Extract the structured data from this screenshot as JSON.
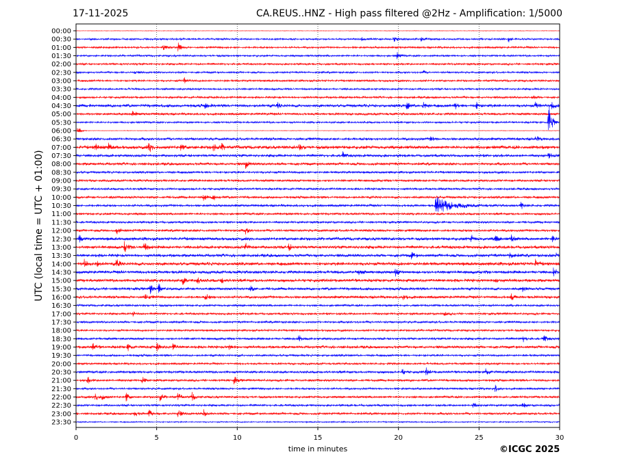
{
  "header": {
    "date": "17-11-2025",
    "title": "CA.REUS..HNZ - High pass filtered @2Hz - Amplification: 1/5000"
  },
  "footer": {
    "copyright": "©ICGC 2025"
  },
  "chart_data": {
    "type": "line",
    "subtype": "helicorder",
    "title": "CA.REUS..HNZ - High pass filtered @2Hz - Amplification: 1/5000",
    "xlabel": "time in minutes",
    "ylabel": "UTC (local time = UTC + 01:00)",
    "xlim": [
      0,
      30
    ],
    "xticks": [
      0,
      5,
      10,
      15,
      20,
      25,
      30
    ],
    "grid": "vertical dotted at 5-minute intervals",
    "colors": [
      "#ff0000",
      "#0000ff"
    ],
    "rows": [
      "00:00",
      "00:30",
      "01:00",
      "01:30",
      "02:00",
      "02:30",
      "03:00",
      "03:30",
      "04:00",
      "04:30",
      "05:00",
      "05:30",
      "06:00",
      "06:30",
      "07:00",
      "07:30",
      "08:00",
      "08:30",
      "09:00",
      "09:30",
      "10:00",
      "10:30",
      "11:00",
      "11:30",
      "12:00",
      "12:30",
      "13:00",
      "13:30",
      "14:00",
      "14:30",
      "15:00",
      "15:30",
      "16:00",
      "16:30",
      "17:00",
      "17:30",
      "18:00",
      "18:30",
      "19:00",
      "19:30",
      "20:00",
      "20:30",
      "21:00",
      "21:30",
      "22:00",
      "22:30",
      "23:00",
      "23:30"
    ],
    "noise_level": [
      0.3,
      1.2,
      1.3,
      1.2,
      1.3,
      1.2,
      1.3,
      1.2,
      1.4,
      2.0,
      1.6,
      1.2,
      0.3,
      1.8,
      2.2,
      1.8,
      1.8,
      1.5,
      1.5,
      1.4,
      1.6,
      1.6,
      1.5,
      1.4,
      1.6,
      2.0,
      2.0,
      2.0,
      2.2,
      2.0,
      2.0,
      1.8,
      1.8,
      1.4,
      1.4,
      1.4,
      1.3,
      1.5,
      1.8,
      1.4,
      1.3,
      1.6,
      1.5,
      1.3,
      1.5,
      1.4,
      1.5,
      0.8
    ],
    "events": [
      {
        "row": 1,
        "minute": 17.7,
        "amp": 3
      },
      {
        "row": 1,
        "minute": 19.7,
        "amp": 6
      },
      {
        "row": 1,
        "minute": 21.4,
        "amp": 6
      },
      {
        "row": 1,
        "minute": 26.8,
        "amp": 5
      },
      {
        "row": 2,
        "minute": 5.4,
        "amp": 4
      },
      {
        "row": 2,
        "minute": 6.3,
        "amp": 8
      },
      {
        "row": 3,
        "minute": 19.9,
        "amp": 6
      },
      {
        "row": 5,
        "minute": 3.6,
        "amp": 3
      },
      {
        "row": 5,
        "minute": 21.5,
        "amp": 3
      },
      {
        "row": 6,
        "minute": 6.7,
        "amp": 5
      },
      {
        "row": 8,
        "minute": 28.3,
        "amp": 3
      },
      {
        "row": 9,
        "minute": 8,
        "amp": 5
      },
      {
        "row": 9,
        "minute": 12.5,
        "amp": 4
      },
      {
        "row": 9,
        "minute": 20.5,
        "amp": 6
      },
      {
        "row": 9,
        "minute": 21.5,
        "amp": 6
      },
      {
        "row": 9,
        "minute": 23.5,
        "amp": 5
      },
      {
        "row": 9,
        "minute": 24.8,
        "amp": 6
      },
      {
        "row": 9,
        "minute": 28.5,
        "amp": 5
      },
      {
        "row": 9,
        "minute": 29.5,
        "amp": 6
      },
      {
        "row": 10,
        "minute": 3.5,
        "amp": 4
      },
      {
        "row": 11,
        "minute": 29.3,
        "amp": 40
      },
      {
        "row": 12,
        "minute": 0.1,
        "amp": 8
      },
      {
        "row": 13,
        "minute": 22,
        "amp": 5
      },
      {
        "row": 13,
        "minute": 28.5,
        "amp": 4
      },
      {
        "row": 14,
        "minute": 1.2,
        "amp": 5
      },
      {
        "row": 14,
        "minute": 2,
        "amp": 5
      },
      {
        "row": 14,
        "minute": 4.5,
        "amp": 8
      },
      {
        "row": 14,
        "minute": 6.5,
        "amp": 5
      },
      {
        "row": 14,
        "minute": 8.5,
        "amp": 6
      },
      {
        "row": 14,
        "minute": 9,
        "amp": 6
      },
      {
        "row": 14,
        "minute": 13.8,
        "amp": 5
      },
      {
        "row": 15,
        "minute": 16.5,
        "amp": 6
      },
      {
        "row": 15,
        "minute": 29.3,
        "amp": 5
      },
      {
        "row": 16,
        "minute": 10.5,
        "amp": 7
      },
      {
        "row": 20,
        "minute": 7.9,
        "amp": 5
      },
      {
        "row": 20,
        "minute": 8.5,
        "amp": 5
      },
      {
        "row": 21,
        "minute": 22.3,
        "amp": 14,
        "width": 0.8
      },
      {
        "row": 21,
        "minute": 27.6,
        "amp": 5
      },
      {
        "row": 24,
        "minute": 2.5,
        "amp": 5
      },
      {
        "row": 24,
        "minute": 10.5,
        "amp": 5
      },
      {
        "row": 25,
        "minute": 0.2,
        "amp": 6
      },
      {
        "row": 25,
        "minute": 24.5,
        "amp": 6
      },
      {
        "row": 25,
        "minute": 26,
        "amp": 6
      },
      {
        "row": 25,
        "minute": 27,
        "amp": 6
      },
      {
        "row": 25,
        "minute": 29.5,
        "amp": 6
      },
      {
        "row": 26,
        "minute": 3,
        "amp": 8
      },
      {
        "row": 26,
        "minute": 4.2,
        "amp": 8
      },
      {
        "row": 26,
        "minute": 10.5,
        "amp": 7
      },
      {
        "row": 26,
        "minute": 13.2,
        "amp": 5
      },
      {
        "row": 27,
        "minute": 20.8,
        "amp": 5
      },
      {
        "row": 27,
        "minute": 26.9,
        "amp": 7
      },
      {
        "row": 27,
        "minute": 29.8,
        "amp": 5
      },
      {
        "row": 28,
        "minute": 0.5,
        "amp": 6
      },
      {
        "row": 28,
        "minute": 1.2,
        "amp": 6
      },
      {
        "row": 28,
        "minute": 2.5,
        "amp": 7
      },
      {
        "row": 28,
        "minute": 28.5,
        "amp": 5
      },
      {
        "row": 29,
        "minute": 17.5,
        "amp": 6
      },
      {
        "row": 29,
        "minute": 19.8,
        "amp": 6
      },
      {
        "row": 29,
        "minute": 29.6,
        "amp": 5
      },
      {
        "row": 30,
        "minute": 6.6,
        "amp": 7
      },
      {
        "row": 30,
        "minute": 7.5,
        "amp": 7
      },
      {
        "row": 30,
        "minute": 9,
        "amp": 5
      },
      {
        "row": 30,
        "minute": 26,
        "amp": 5
      },
      {
        "row": 31,
        "minute": 4.6,
        "amp": 7
      },
      {
        "row": 31,
        "minute": 5.1,
        "amp": 8
      },
      {
        "row": 31,
        "minute": 10.8,
        "amp": 5
      },
      {
        "row": 31,
        "minute": 27.7,
        "amp": 5
      },
      {
        "row": 32,
        "minute": 4.3,
        "amp": 5
      },
      {
        "row": 32,
        "minute": 8,
        "amp": 5
      },
      {
        "row": 32,
        "minute": 20.3,
        "amp": 5
      },
      {
        "row": 32,
        "minute": 27,
        "amp": 5
      },
      {
        "row": 34,
        "minute": 3.5,
        "amp": 4
      },
      {
        "row": 34,
        "minute": 22.8,
        "amp": 4
      },
      {
        "row": 37,
        "minute": 13.8,
        "amp": 5
      },
      {
        "row": 37,
        "minute": 27.7,
        "amp": 5
      },
      {
        "row": 37,
        "minute": 29,
        "amp": 6
      },
      {
        "row": 38,
        "minute": 1,
        "amp": 7
      },
      {
        "row": 38,
        "minute": 3.2,
        "amp": 7
      },
      {
        "row": 38,
        "minute": 5,
        "amp": 6
      },
      {
        "row": 38,
        "minute": 6,
        "amp": 6
      },
      {
        "row": 38,
        "minute": 9.5,
        "amp": 6
      },
      {
        "row": 41,
        "minute": 20.2,
        "amp": 5
      },
      {
        "row": 41,
        "minute": 21.7,
        "amp": 6
      },
      {
        "row": 41,
        "minute": 25.4,
        "amp": 7
      },
      {
        "row": 42,
        "minute": 0.7,
        "amp": 5
      },
      {
        "row": 42,
        "minute": 4.1,
        "amp": 5
      },
      {
        "row": 42,
        "minute": 9.8,
        "amp": 6
      },
      {
        "row": 43,
        "minute": 26,
        "amp": 5
      },
      {
        "row": 44,
        "minute": 1.2,
        "amp": 7
      },
      {
        "row": 44,
        "minute": 1.6,
        "amp": 6
      },
      {
        "row": 44,
        "minute": 3.1,
        "amp": 7
      },
      {
        "row": 44,
        "minute": 5.2,
        "amp": 6
      },
      {
        "row": 44,
        "minute": 6.3,
        "amp": 5
      },
      {
        "row": 44,
        "minute": 7.2,
        "amp": 6
      },
      {
        "row": 45,
        "minute": 24.6,
        "amp": 5
      },
      {
        "row": 45,
        "minute": 27.7,
        "amp": 6
      },
      {
        "row": 46,
        "minute": 3.6,
        "amp": 6
      },
      {
        "row": 46,
        "minute": 4.5,
        "amp": 6
      },
      {
        "row": 46,
        "minute": 6.3,
        "amp": 7
      },
      {
        "row": 46,
        "minute": 7.9,
        "amp": 7
      }
    ]
  }
}
